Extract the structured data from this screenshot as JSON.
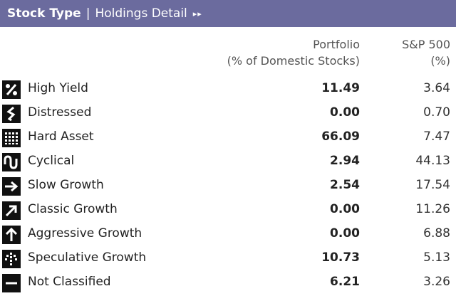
{
  "header": {
    "title": "Stock Type",
    "separator": "|",
    "subtitle": "Holdings Detail",
    "more_glyph": "▸▸"
  },
  "columns": {
    "portfolio": {
      "line1": "Portfolio",
      "line2": "(% of Domestic Stocks)"
    },
    "sp500": {
      "line1": "S&P 500",
      "line2": "(%)"
    }
  },
  "rows": [
    {
      "icon": "high-yield-icon",
      "label": "High Yield",
      "portfolio": "11.49",
      "sp500": "3.64"
    },
    {
      "icon": "distressed-icon",
      "label": "Distressed",
      "portfolio": "0.00",
      "sp500": "0.70"
    },
    {
      "icon": "hard-asset-icon",
      "label": "Hard Asset",
      "portfolio": "66.09",
      "sp500": "7.47"
    },
    {
      "icon": "cyclical-icon",
      "label": "Cyclical",
      "portfolio": "2.94",
      "sp500": "44.13"
    },
    {
      "icon": "slow-growth-icon",
      "label": "Slow Growth",
      "portfolio": "2.54",
      "sp500": "17.54"
    },
    {
      "icon": "classic-growth-icon",
      "label": "Classic Growth",
      "portfolio": "0.00",
      "sp500": "11.26"
    },
    {
      "icon": "aggressive-growth-icon",
      "label": "Aggressive Growth",
      "portfolio": "0.00",
      "sp500": "6.88"
    },
    {
      "icon": "speculative-growth-icon",
      "label": "Speculative Growth",
      "portfolio": "10.73",
      "sp500": "5.13"
    },
    {
      "icon": "not-classified-icon",
      "label": "Not Classified",
      "portfolio": "6.21",
      "sp500": "3.26"
    }
  ],
  "colors": {
    "header_bg": "#6b6b9e",
    "icon_bg": "#111111"
  }
}
